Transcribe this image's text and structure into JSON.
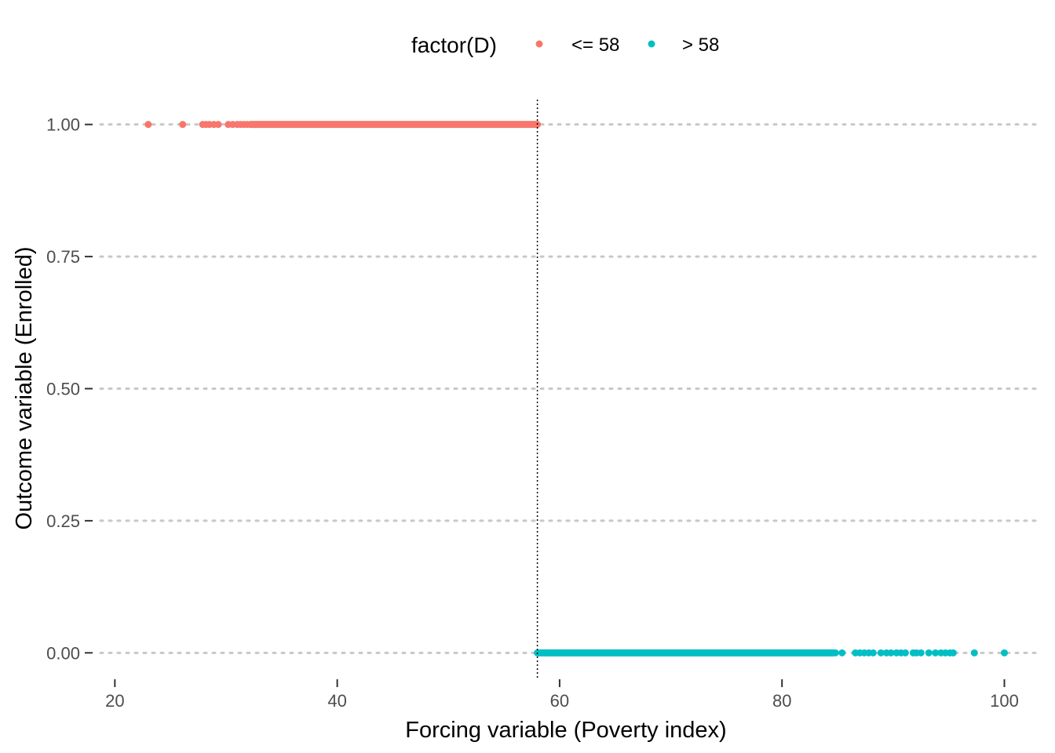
{
  "chart_data": {
    "type": "scatter",
    "xlabel": "Forcing variable (Poverty index)",
    "ylabel": "Outcome variable (Enrolled)",
    "xlim": [
      18,
      103
    ],
    "ylim": [
      -0.05,
      1.05
    ],
    "x_ticks": [
      20,
      40,
      60,
      80,
      100
    ],
    "x_tick_labels": [
      "20",
      "40",
      "60",
      "80",
      "100"
    ],
    "y_ticks": [
      0,
      0.25,
      0.5,
      0.75,
      1
    ],
    "y_tick_labels": [
      "0.00",
      "0.25",
      "0.50",
      "0.75",
      "1.00"
    ],
    "grid": {
      "horizontal_major": true,
      "vertical": false,
      "style": "dotted"
    },
    "cutoff_line": {
      "x": 58,
      "style": "dotted",
      "color": "#000000"
    },
    "legend": {
      "title": "factor(D)",
      "position": "top",
      "entries": [
        {
          "label": "<= 58",
          "color": "#F8766D"
        },
        {
          "label": "> 58",
          "color": "#00BFC4"
        }
      ]
    },
    "series": [
      {
        "name": "<= 58",
        "color": "#F8766D",
        "y": 1,
        "x_range": [
          23,
          58
        ],
        "x": [
          23.0,
          26.1,
          27.9,
          28.2,
          28.5,
          28.9,
          29.3,
          30.2,
          30.6,
          31.0,
          31.3,
          31.6,
          31.9
        ]
      },
      {
        "name": "> 58",
        "color": "#00BFC4",
        "y": 0,
        "x_range": [
          58,
          100
        ],
        "x": [
          84.8,
          85.4,
          86.6,
          87.0,
          87.4,
          87.8,
          88.2,
          88.9,
          89.4,
          89.8,
          90.3,
          90.7,
          91.1,
          91.8,
          92.1,
          92.5,
          93.2,
          93.8,
          94.3,
          94.7,
          95.1,
          95.4,
          97.3,
          100.0
        ]
      }
    ]
  }
}
